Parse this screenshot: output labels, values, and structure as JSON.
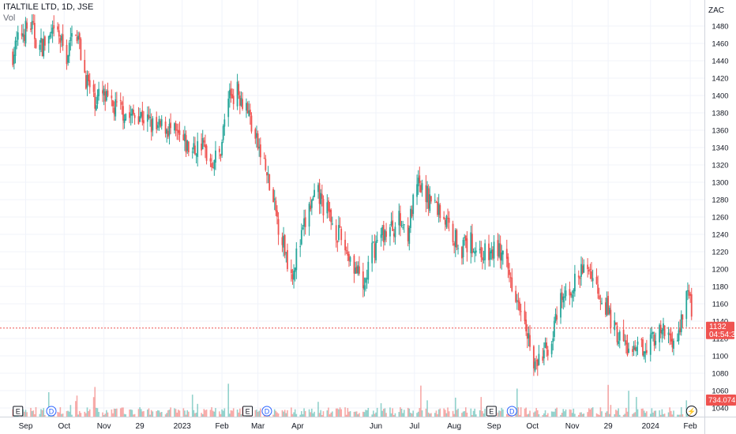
{
  "chart_data": {
    "type": "candlestick",
    "title": "ITALTILE LTD, 1D, JSE",
    "volume_label": "Vol",
    "currency": "ZAC",
    "colors": {
      "up": "#26a69a",
      "down": "#ef5350",
      "grid": "#f0f3fa",
      "text": "#131722",
      "axis_text": "#131722"
    },
    "y_axis": {
      "min": 1030,
      "max": 1510,
      "ticks": [
        1040,
        1060,
        1080,
        1100,
        1120,
        1140,
        1160,
        1180,
        1200,
        1220,
        1240,
        1260,
        1280,
        1300,
        1320,
        1340,
        1360,
        1380,
        1400,
        1420,
        1440,
        1460,
        1480
      ]
    },
    "x_axis": {
      "ticks": [
        {
          "label": "Sep",
          "at": "2022-09-01"
        },
        {
          "label": "Oct",
          "at": "2022-10-01"
        },
        {
          "label": "Nov",
          "at": "2022-11-01"
        },
        {
          "label": "29",
          "at": "2022-11-29"
        },
        {
          "label": "2023",
          "at": "2023-01-01"
        },
        {
          "label": "Feb",
          "at": "2023-02-01"
        },
        {
          "label": "Mar",
          "at": "2023-03-01"
        },
        {
          "label": "Apr",
          "at": "2023-04-01"
        },
        {
          "label": "Jun",
          "at": "2023-06-01"
        },
        {
          "label": "Jul",
          "at": "2023-07-01"
        },
        {
          "label": "Aug",
          "at": "2023-08-01"
        },
        {
          "label": "Sep",
          "at": "2023-09-01"
        },
        {
          "label": "Oct",
          "at": "2023-10-01"
        },
        {
          "label": "Nov",
          "at": "2023-11-01"
        },
        {
          "label": "29",
          "at": "2023-11-29"
        },
        {
          "label": "2024",
          "at": "2024-01-01"
        },
        {
          "label": "Feb",
          "at": "2024-02-01"
        }
      ]
    },
    "last_price": {
      "value": 1132,
      "label": "1132",
      "countdown": "04:54:34"
    },
    "last_volume": {
      "label": "734.074K"
    },
    "events": [
      {
        "type": "E",
        "at": "2022-08-26"
      },
      {
        "type": "D",
        "at": "2022-09-21"
      },
      {
        "type": "E",
        "at": "2023-02-21"
      },
      {
        "type": "D",
        "at": "2023-03-08"
      },
      {
        "type": "E",
        "at": "2023-08-30"
      },
      {
        "type": "D",
        "at": "2023-09-15"
      },
      {
        "type": "bolt",
        "at": "2024-02-02"
      }
    ],
    "series": [
      {
        "x": "2022-08-22",
        "y": 1448
      },
      {
        "x": "2022-08-29",
        "y": 1472
      },
      {
        "x": "2022-09-05",
        "y": 1480
      },
      {
        "x": "2022-09-12",
        "y": 1455
      },
      {
        "x": "2022-09-19",
        "y": 1465
      },
      {
        "x": "2022-09-26",
        "y": 1470
      },
      {
        "x": "2022-10-03",
        "y": 1445
      },
      {
        "x": "2022-10-10",
        "y": 1480
      },
      {
        "x": "2022-10-17",
        "y": 1425
      },
      {
        "x": "2022-10-24",
        "y": 1395
      },
      {
        "x": "2022-10-31",
        "y": 1400
      },
      {
        "x": "2022-11-07",
        "y": 1385
      },
      {
        "x": "2022-11-14",
        "y": 1385
      },
      {
        "x": "2022-11-21",
        "y": 1375
      },
      {
        "x": "2022-11-28",
        "y": 1380
      },
      {
        "x": "2022-12-05",
        "y": 1370
      },
      {
        "x": "2022-12-12",
        "y": 1360
      },
      {
        "x": "2022-12-19",
        "y": 1365
      },
      {
        "x": "2023-01-02",
        "y": 1345
      },
      {
        "x": "2023-01-09",
        "y": 1335
      },
      {
        "x": "2023-01-16",
        "y": 1345
      },
      {
        "x": "2023-01-23",
        "y": 1325
      },
      {
        "x": "2023-01-30",
        "y": 1330
      },
      {
        "x": "2023-02-06",
        "y": 1400
      },
      {
        "x": "2023-02-13",
        "y": 1405
      },
      {
        "x": "2023-02-20",
        "y": 1390
      },
      {
        "x": "2023-02-27",
        "y": 1350
      },
      {
        "x": "2023-03-06",
        "y": 1320
      },
      {
        "x": "2023-03-13",
        "y": 1275
      },
      {
        "x": "2023-03-20",
        "y": 1235
      },
      {
        "x": "2023-03-27",
        "y": 1195
      },
      {
        "x": "2023-04-03",
        "y": 1230
      },
      {
        "x": "2023-04-10",
        "y": 1270
      },
      {
        "x": "2023-04-17",
        "y": 1285
      },
      {
        "x": "2023-04-24",
        "y": 1265
      },
      {
        "x": "2023-05-01",
        "y": 1245
      },
      {
        "x": "2023-05-08",
        "y": 1225
      },
      {
        "x": "2023-05-15",
        "y": 1205
      },
      {
        "x": "2023-05-22",
        "y": 1175
      },
      {
        "x": "2023-05-29",
        "y": 1220
      },
      {
        "x": "2023-06-05",
        "y": 1240
      },
      {
        "x": "2023-06-12",
        "y": 1245
      },
      {
        "x": "2023-06-19",
        "y": 1255
      },
      {
        "x": "2023-06-26",
        "y": 1245
      },
      {
        "x": "2023-07-03",
        "y": 1295
      },
      {
        "x": "2023-07-10",
        "y": 1285
      },
      {
        "x": "2023-07-17",
        "y": 1275
      },
      {
        "x": "2023-07-24",
        "y": 1260
      },
      {
        "x": "2023-07-31",
        "y": 1240
      },
      {
        "x": "2023-08-07",
        "y": 1225
      },
      {
        "x": "2023-08-14",
        "y": 1230
      },
      {
        "x": "2023-08-21",
        "y": 1220
      },
      {
        "x": "2023-08-28",
        "y": 1215
      },
      {
        "x": "2023-09-04",
        "y": 1225
      },
      {
        "x": "2023-09-11",
        "y": 1200
      },
      {
        "x": "2023-09-18",
        "y": 1175
      },
      {
        "x": "2023-09-25",
        "y": 1150
      },
      {
        "x": "2023-10-02",
        "y": 1085
      },
      {
        "x": "2023-10-09",
        "y": 1100
      },
      {
        "x": "2023-10-16",
        "y": 1120
      },
      {
        "x": "2023-10-23",
        "y": 1160
      },
      {
        "x": "2023-10-30",
        "y": 1175
      },
      {
        "x": "2023-11-06",
        "y": 1190
      },
      {
        "x": "2023-11-13",
        "y": 1205
      },
      {
        "x": "2023-11-20",
        "y": 1180
      },
      {
        "x": "2023-11-27",
        "y": 1160
      },
      {
        "x": "2023-12-04",
        "y": 1130
      },
      {
        "x": "2023-12-11",
        "y": 1115
      },
      {
        "x": "2023-12-18",
        "y": 1100
      },
      {
        "x": "2023-12-25",
        "y": 1110
      },
      {
        "x": "2024-01-01",
        "y": 1120
      },
      {
        "x": "2024-01-08",
        "y": 1125
      },
      {
        "x": "2024-01-15",
        "y": 1125
      },
      {
        "x": "2024-01-22",
        "y": 1115
      },
      {
        "x": "2024-01-29",
        "y": 1180
      },
      {
        "x": "2024-02-05",
        "y": 1132
      }
    ]
  }
}
